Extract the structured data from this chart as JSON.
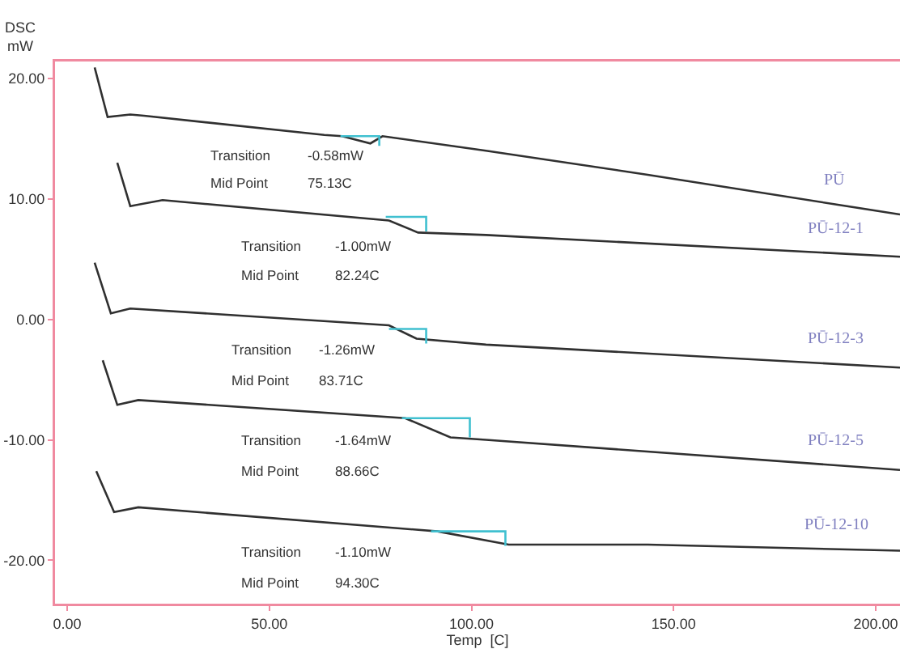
{
  "chart_data": {
    "type": "line",
    "xlabel": "Temp  [C]",
    "ylabel": "DSC\nmW",
    "xlim": [
      -3,
      206
    ],
    "ylim": [
      -23.6,
      21.4
    ],
    "xticks": [
      {
        "value": 0,
        "label": "0.00"
      },
      {
        "value": 50,
        "label": "50.00"
      },
      {
        "value": 100,
        "label": "100.00"
      },
      {
        "value": 150,
        "label": "150.00"
      },
      {
        "value": 200,
        "label": "200.00"
      }
    ],
    "yticks": [
      {
        "value": 20,
        "label": "20.00"
      },
      {
        "value": 10,
        "label": "10.00"
      },
      {
        "value": 0,
        "label": "0.00"
      },
      {
        "value": -10,
        "label": "-10.00"
      },
      {
        "value": -20,
        "label": "-20.00"
      }
    ],
    "grid": false,
    "legend": false,
    "line_style": "solid",
    "marker": "none",
    "series": [
      {
        "name": "PŪ",
        "color": "#303030",
        "x": [
          6.8,
          10,
          15.6,
          19,
          63.6,
          68,
          75,
          78,
          103.6,
          143.6,
          206
        ],
        "values": [
          20.9,
          16.8,
          17.0,
          16.9,
          15.3,
          15.2,
          14.6,
          15.2,
          14.0,
          12.0,
          8.7
        ]
      },
      {
        "name": "PŪ-12-1",
        "color": "#303030",
        "x": [
          12.4,
          15.6,
          23.6,
          79.6,
          86.8,
          103.6,
          206
        ],
        "values": [
          13.0,
          9.4,
          9.9,
          8.2,
          7.2,
          7.0,
          5.2
        ]
      },
      {
        "name": "PŪ-12-3",
        "color": "#303030",
        "x": [
          6.8,
          10.8,
          15.6,
          79.6,
          86.4,
          103.6,
          206
        ],
        "values": [
          4.7,
          0.5,
          0.9,
          -0.5,
          -1.6,
          -2.1,
          -4.0
        ]
      },
      {
        "name": "PŪ-12-5",
        "color": "#303030",
        "x": [
          8.8,
          12.4,
          17.6,
          83.6,
          94.8,
          103.6,
          206
        ],
        "values": [
          -3.4,
          -7.1,
          -6.7,
          -8.2,
          -9.8,
          -10.0,
          -12.5
        ]
      },
      {
        "name": "PŪ-12-10",
        "color": "#303030",
        "x": [
          7.2,
          11.6,
          17.6,
          91.6,
          109.2,
          143.6,
          206
        ],
        "values": [
          -12.6,
          -16.0,
          -15.6,
          -17.6,
          -18.7,
          -18.7,
          -19.2
        ]
      },
      {
        "color": "#40c0d0",
        "x": [
          67.6,
          77.2,
          77.2
        ],
        "values": [
          15.2,
          15.2,
          14.4
        ]
      },
      {
        "color": "#40c0d0",
        "x": [
          78.8,
          88.8,
          88.8
        ],
        "values": [
          8.5,
          8.5,
          7.3
        ]
      },
      {
        "color": "#40c0d0",
        "x": [
          79.6,
          88.8,
          88.8
        ],
        "values": [
          -0.8,
          -0.8,
          -2.0
        ]
      },
      {
        "color": "#40c0d0",
        "x": [
          82.8,
          99.6,
          99.6
        ],
        "values": [
          -8.2,
          -8.2,
          -9.8
        ]
      },
      {
        "color": "#40c0d0",
        "x": [
          90,
          108.4,
          108.4
        ],
        "values": [
          -17.6,
          -17.6,
          -18.8
        ]
      }
    ],
    "annotations": [
      "Transition",
      "-0.58mW",
      "Mid Point",
      "75.13C",
      "Transition",
      "-1.00mW",
      "Mid Point",
      "82.24C",
      "Transition",
      "-1.26mW",
      "Mid Point",
      "83.71C",
      "Transition",
      "-1.64mW",
      "Mid Point",
      "88.66C",
      "Transition",
      "-1.10mW",
      "Mid Point",
      "94.30C"
    ]
  }
}
